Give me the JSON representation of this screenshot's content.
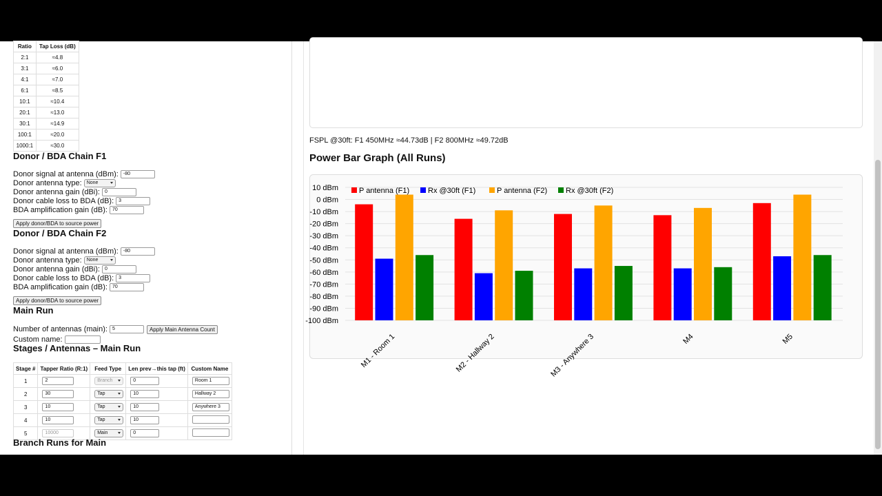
{
  "tap_table": {
    "headers": [
      "Ratio",
      "Tap Loss (dB)"
    ],
    "rows": [
      [
        "2:1",
        "≈4.8"
      ],
      [
        "3:1",
        "≈6.0"
      ],
      [
        "4:1",
        "≈7.0"
      ],
      [
        "6:1",
        "≈8.5"
      ],
      [
        "10:1",
        "≈10.4"
      ],
      [
        "20:1",
        "≈13.0"
      ],
      [
        "30:1",
        "≈14.9"
      ],
      [
        "100:1",
        "≈20.0"
      ],
      [
        "1000:1",
        "≈30.0"
      ]
    ]
  },
  "donor_f1": {
    "heading": "Donor / BDA Chain F1",
    "fields": [
      {
        "label": "Donor signal at antenna (dBm):",
        "value": "-80"
      },
      {
        "label": "Donor antenna type:",
        "value": "None"
      },
      {
        "label": "Donor antenna gain (dBi):",
        "value": "0"
      },
      {
        "label": "Donor cable loss to BDA (dB):",
        "value": "3"
      },
      {
        "label": "BDA amplification gain (dB):",
        "value": "70"
      }
    ],
    "button": "Apply donor/BDA to source power"
  },
  "donor_f2": {
    "heading": "Donor / BDA Chain F2",
    "fields": [
      {
        "label": "Donor signal at antenna (dBm):",
        "value": "-80"
      },
      {
        "label": "Donor antenna type:",
        "value": "None"
      },
      {
        "label": "Donor antenna gain (dBi):",
        "value": "0"
      },
      {
        "label": "Donor cable loss to BDA (dB):",
        "value": "3"
      },
      {
        "label": "BDA amplification gain (dB):",
        "value": "70"
      }
    ],
    "button": "Apply donor/BDA to source power"
  },
  "main_run": {
    "heading": "Main Run",
    "antennas_label": "Number of antennas (main):",
    "antennas_value": "5",
    "button": "Apply Main Antenna Count",
    "custom_name_label": "Custom name:"
  },
  "stages": {
    "heading": "Stages / Antennas – Main Run",
    "headers": [
      "Stage #",
      "Tapper Ratio (R:1)",
      "Feed Type",
      "Len prev→this tap (ft)",
      "Custom Name"
    ],
    "rows": [
      [
        "1",
        "2",
        "Branch",
        "0",
        "Room 1"
      ],
      [
        "2",
        "30",
        "Tap",
        "10",
        "Hallway 2"
      ],
      [
        "3",
        "10",
        "Tap",
        "10",
        "Anywhere 3"
      ],
      [
        "4",
        "10",
        "Tap",
        "10",
        null
      ],
      [
        "5",
        "10000",
        "Main",
        "0",
        null
      ]
    ]
  },
  "branch_heading": "Branch Runs for Main",
  "fspl": "FSPL @30ft: F1 450MHz ≈44.73dB | F2 800MHz ≈49.72dB",
  "chart_heading": "Power Bar Graph (All Runs)",
  "chart_data": {
    "type": "bar",
    "categories": [
      "M1 - Room 1",
      "M2 - Hallway 2",
      "M3 - Anywhere 3",
      "M4",
      "M5"
    ],
    "series": [
      {
        "name": "P antenna (F1)",
        "color": "#ff0000",
        "values": [
          -4,
          -16,
          -12,
          -13,
          -3
        ]
      },
      {
        "name": "Rx @30ft (F1)",
        "color": "#0000ff",
        "values": [
          -49,
          -61,
          -57,
          -57,
          -47
        ]
      },
      {
        "name": "P antenna (F2)",
        "color": "#ffa500",
        "values": [
          4,
          -9,
          -5,
          -7,
          4
        ]
      },
      {
        "name": "Rx @30ft (F2)",
        "color": "#008000",
        "values": [
          -46,
          -59,
          -55,
          -56,
          -46
        ]
      }
    ],
    "ylim": [
      -100,
      10
    ],
    "yticks": [
      {
        "value": 10,
        "label": "10 dBm"
      },
      {
        "value": 0,
        "label": "0 dBm"
      },
      {
        "value": -10,
        "label": "-10 dBm"
      },
      {
        "value": -20,
        "label": "-20 dBm"
      },
      {
        "value": -30,
        "label": "-30 dBm"
      },
      {
        "value": -40,
        "label": "-40 dBm"
      },
      {
        "value": -50,
        "label": "-50 dBm"
      },
      {
        "value": -60,
        "label": "-60 dBm"
      },
      {
        "value": -70,
        "label": "-70 dBm"
      },
      {
        "value": -80,
        "label": "-80 dBm"
      },
      {
        "value": -90,
        "label": "-90 dBm"
      },
      {
        "value": -100,
        "label": "-100 dBm"
      }
    ],
    "grid": true,
    "legend": "top"
  }
}
